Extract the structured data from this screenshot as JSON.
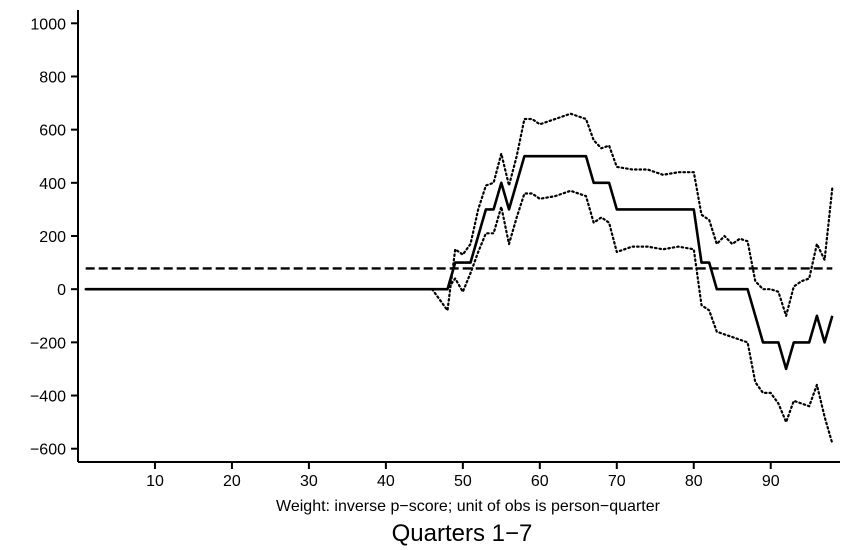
{
  "chart_data": {
    "type": "line",
    "title": "",
    "xlabel": "",
    "ylabel": "",
    "note": "Weight: inverse p−score; unit of obs is person−quarter",
    "caption": "Quarters 1−7",
    "xlim": [
      0,
      99
    ],
    "ylim": [
      -650,
      1050
    ],
    "x_ticks": [
      10,
      20,
      30,
      40,
      50,
      60,
      70,
      80,
      90
    ],
    "y_ticks": [
      -600,
      -400,
      -200,
      0,
      200,
      400,
      600,
      800,
      1000
    ],
    "x_tick_labels": [
      "10",
      "20",
      "30",
      "40",
      "50",
      "60",
      "70",
      "80",
      "90"
    ],
    "y_tick_labels": [
      "−600",
      "−400",
      "−200",
      "0",
      "200",
      "400",
      "600",
      "800",
      "1000"
    ],
    "grid": false,
    "legend": "none",
    "series": [
      {
        "style": "solid",
        "points": [
          [
            1,
            0
          ],
          [
            48,
            0
          ],
          [
            49,
            100
          ],
          [
            51,
            100
          ],
          [
            52,
            200
          ],
          [
            53,
            300
          ],
          [
            54,
            300
          ],
          [
            55,
            400
          ],
          [
            56,
            300
          ],
          [
            58,
            500
          ],
          [
            66,
            500
          ],
          [
            67,
            400
          ],
          [
            69,
            400
          ],
          [
            70,
            300
          ],
          [
            80,
            300
          ],
          [
            81,
            100
          ],
          [
            82,
            100
          ],
          [
            83,
            0
          ],
          [
            87,
            0
          ],
          [
            89,
            -200
          ],
          [
            91,
            -200
          ],
          [
            92,
            -300
          ],
          [
            93,
            -200
          ],
          [
            95,
            -200
          ],
          [
            96,
            -100
          ],
          [
            97,
            -200
          ],
          [
            98,
            -100
          ]
        ]
      },
      {
        "style": "dotted",
        "points": [
          [
            1,
            0
          ],
          [
            46,
            0
          ],
          [
            48,
            -80
          ],
          [
            49,
            150
          ],
          [
            50,
            130
          ],
          [
            51,
            170
          ],
          [
            52,
            300
          ],
          [
            53,
            390
          ],
          [
            54,
            400
          ],
          [
            55,
            510
          ],
          [
            56,
            390
          ],
          [
            57,
            500
          ],
          [
            58,
            640
          ],
          [
            59,
            640
          ],
          [
            60,
            620
          ],
          [
            62,
            640
          ],
          [
            64,
            660
          ],
          [
            66,
            640
          ],
          [
            67,
            560
          ],
          [
            68,
            530
          ],
          [
            69,
            540
          ],
          [
            70,
            460
          ],
          [
            72,
            450
          ],
          [
            74,
            450
          ],
          [
            76,
            430
          ],
          [
            78,
            440
          ],
          [
            80,
            440
          ],
          [
            81,
            280
          ],
          [
            82,
            260
          ],
          [
            83,
            170
          ],
          [
            84,
            200
          ],
          [
            85,
            170
          ],
          [
            86,
            190
          ],
          [
            87,
            180
          ],
          [
            88,
            30
          ],
          [
            89,
            0
          ],
          [
            90,
            0
          ],
          [
            91,
            -10
          ],
          [
            92,
            -100
          ],
          [
            93,
            10
          ],
          [
            94,
            30
          ],
          [
            95,
            40
          ],
          [
            96,
            170
          ],
          [
            97,
            110
          ],
          [
            98,
            380
          ]
        ]
      },
      {
        "style": "dotted",
        "points": [
          [
            1,
            0
          ],
          [
            46,
            0
          ],
          [
            48,
            0
          ],
          [
            49,
            40
          ],
          [
            50,
            -10
          ],
          [
            51,
            60
          ],
          [
            52,
            140
          ],
          [
            53,
            210
          ],
          [
            54,
            210
          ],
          [
            55,
            310
          ],
          [
            56,
            170
          ],
          [
            57,
            270
          ],
          [
            58,
            360
          ],
          [
            59,
            360
          ],
          [
            60,
            340
          ],
          [
            62,
            350
          ],
          [
            64,
            370
          ],
          [
            66,
            350
          ],
          [
            67,
            250
          ],
          [
            68,
            270
          ],
          [
            69,
            250
          ],
          [
            70,
            140
          ],
          [
            72,
            160
          ],
          [
            74,
            160
          ],
          [
            76,
            150
          ],
          [
            78,
            160
          ],
          [
            80,
            150
          ],
          [
            81,
            -60
          ],
          [
            82,
            -80
          ],
          [
            83,
            -160
          ],
          [
            84,
            -170
          ],
          [
            85,
            -180
          ],
          [
            86,
            -190
          ],
          [
            87,
            -200
          ],
          [
            88,
            -350
          ],
          [
            89,
            -390
          ],
          [
            90,
            -390
          ],
          [
            91,
            -430
          ],
          [
            92,
            -500
          ],
          [
            93,
            -420
          ],
          [
            94,
            -430
          ],
          [
            95,
            -440
          ],
          [
            96,
            -360
          ],
          [
            97,
            -480
          ],
          [
            98,
            -580
          ]
        ]
      },
      {
        "style": "dashed",
        "points": [
          [
            1,
            78
          ],
          [
            98,
            78
          ]
        ]
      }
    ]
  }
}
